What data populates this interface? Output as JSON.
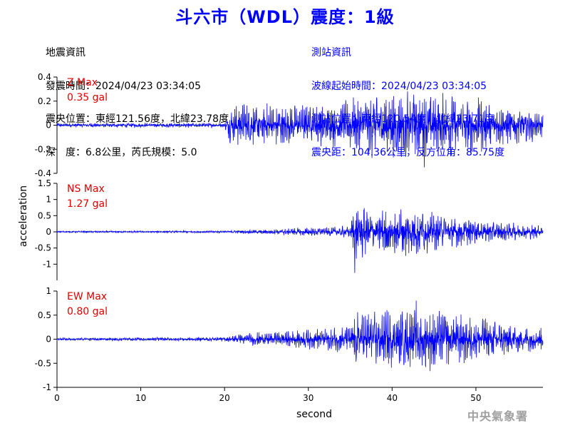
{
  "header": {
    "title": "斗六市（WDL）震度：1級"
  },
  "quake_info": {
    "heading": "地震資訊",
    "time": "發震時間：2024/04/23 03:34:05",
    "epicenter": "震央位置：東經121.56度，北緯23.78度",
    "depth_magnitude": "深　度：6.8公里，芮氏規模：5.0"
  },
  "station_info": {
    "heading": "測站資訊",
    "wave_start": "波線起始時間：2024/04/23 03:34:05",
    "location": "測站位置：東經120.54度，北緯23.71度",
    "distance": "震央距：104.36公里，反方位角：85.75度"
  },
  "footer": {
    "agency": "中央氣象署"
  },
  "colors": {
    "title": "#0000ff",
    "trace": "#0000ff",
    "max_label": "#e00000",
    "station_text": "#0000ff",
    "agency": "#a0a0a0"
  },
  "chart_data": [
    {
      "type": "line",
      "component": "Z",
      "max_label": "Z Max",
      "max_value": "0.35 gal",
      "ylim": [
        -0.4,
        0.4
      ],
      "yticks": [
        -0.4,
        -0.2,
        0,
        0.2,
        0.4
      ],
      "ytick_labels": [
        "-0.4",
        "-0.2",
        "0",
        "0.2",
        "0.4"
      ],
      "envelope": [
        [
          0,
          0.02
        ],
        [
          20,
          0.02
        ],
        [
          20.5,
          0.15
        ],
        [
          22,
          0.2
        ],
        [
          30,
          0.18
        ],
        [
          34,
          0.2
        ],
        [
          37,
          0.28
        ],
        [
          42,
          0.3
        ],
        [
          50,
          0.25
        ],
        [
          58,
          0.12
        ]
      ],
      "peak": 0.35
    },
    {
      "type": "line",
      "component": "NS",
      "max_label": "NS Max",
      "max_value": "1.27 gal",
      "ylim": [
        -1.5,
        1.5
      ],
      "yticks": [
        -1,
        -0.5,
        0,
        0.5,
        1,
        1.5
      ],
      "ytick_labels": [
        "-1",
        "-0.5",
        "0",
        "0.5",
        "1",
        "1.5"
      ],
      "envelope": [
        [
          0,
          0.03
        ],
        [
          20,
          0.04
        ],
        [
          25,
          0.08
        ],
        [
          30,
          0.15
        ],
        [
          35,
          0.2
        ],
        [
          35.6,
          1.1
        ],
        [
          38,
          0.7
        ],
        [
          42,
          0.9
        ],
        [
          45,
          0.6
        ],
        [
          50,
          0.4
        ],
        [
          58,
          0.2
        ]
      ],
      "peak": 1.27
    },
    {
      "type": "line",
      "component": "EW",
      "max_label": "EW Max",
      "max_value": "0.80 gal",
      "ylim": [
        -1,
        1
      ],
      "yticks": [
        -1,
        -0.5,
        0,
        0.5,
        1
      ],
      "ytick_labels": [
        "-1",
        "-0.5",
        "0",
        "0.5",
        "1"
      ],
      "envelope": [
        [
          0,
          0.03
        ],
        [
          20,
          0.05
        ],
        [
          22,
          0.12
        ],
        [
          30,
          0.22
        ],
        [
          35,
          0.3
        ],
        [
          35.8,
          0.6
        ],
        [
          40,
          0.65
        ],
        [
          44,
          0.7
        ],
        [
          48,
          0.55
        ],
        [
          53,
          0.4
        ],
        [
          58,
          0.25
        ]
      ],
      "peak": 0.8
    }
  ],
  "axes": {
    "xlabel": "second",
    "ylabel": "acceleration",
    "xlim": [
      0,
      58
    ],
    "xticks": [
      0,
      10,
      20,
      30,
      40,
      50
    ],
    "xtick_labels": [
      "0",
      "10",
      "20",
      "30",
      "40",
      "50"
    ]
  }
}
